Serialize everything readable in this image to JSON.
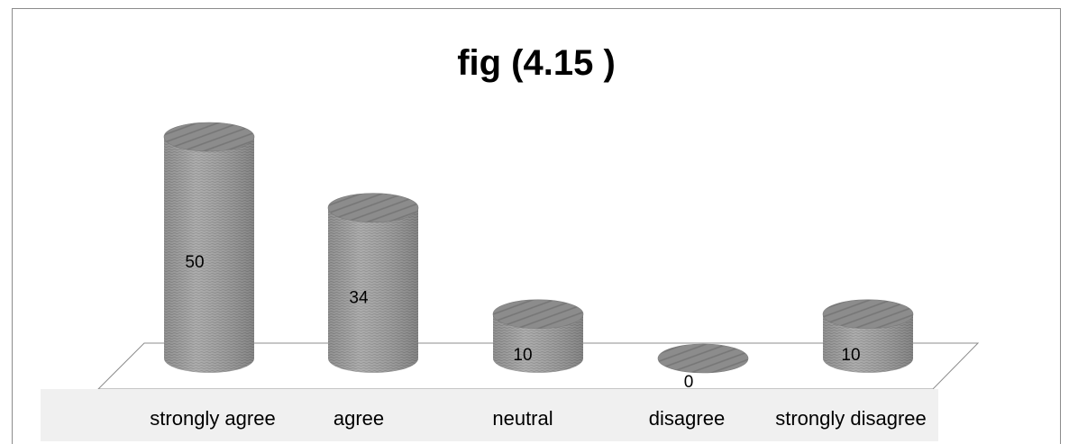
{
  "chart_data": {
    "type": "bar",
    "title": "fig (4.15 )",
    "categories": [
      "strongly agree",
      "agree",
      "neutral",
      "disagree",
      "strongly disagree"
    ],
    "values": [
      50,
      34,
      10,
      0,
      10
    ],
    "data_labels": [
      "50",
      "34",
      "10",
      "0",
      "10"
    ],
    "ylim": [
      0,
      60
    ],
    "grid": false,
    "legend": "none",
    "style": "3d-cylinder"
  },
  "colors": {
    "bar_body": "#9c9c9c",
    "bar_top": "#858585",
    "category_band": "#f0f0f0",
    "frame": "#8c8c8c"
  }
}
